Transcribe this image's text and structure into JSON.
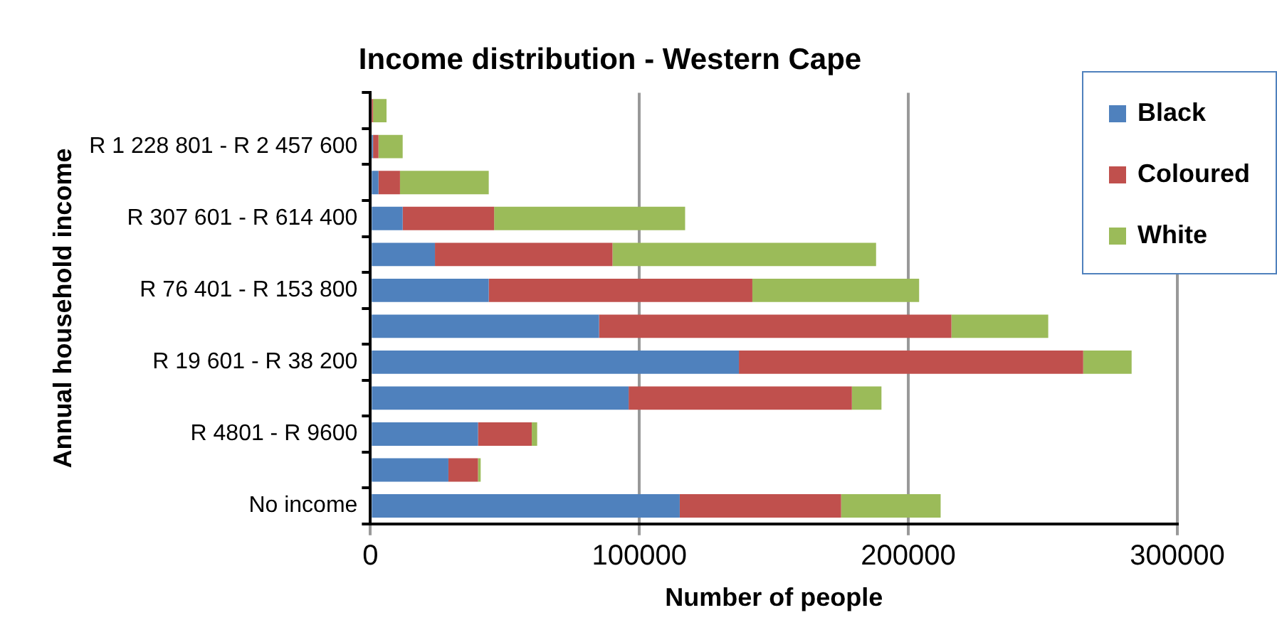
{
  "chart_data": {
    "type": "bar",
    "orientation": "horizontal",
    "stacked": true,
    "title": "Income distribution - Western Cape",
    "xlabel": "Number of people",
    "ylabel": "Annual household income",
    "categories": [
      null,
      "R 1 228 801 - R 2 457 600",
      null,
      "R 307 601 - R 614 400",
      null,
      "R 76 401 - R 153 800",
      null,
      "R 19 601 - R 38 200",
      null,
      "R 4801 - R 9600",
      null,
      "No income"
    ],
    "series": [
      {
        "name": "Black",
        "color": "#4f81bd",
        "values": [
          null,
          1000,
          3000,
          12000,
          24000,
          44000,
          85000,
          137000,
          96000,
          40000,
          29000,
          115000
        ]
      },
      {
        "name": "Coloured",
        "color": "#c0504d",
        "values": [
          1000,
          2000,
          8000,
          34000,
          66000,
          98000,
          131000,
          128000,
          83000,
          20000,
          11000,
          60000
        ]
      },
      {
        "name": "White",
        "color": "#9bbb59",
        "values": [
          5000,
          9000,
          33000,
          71000,
          98000,
          62000,
          36000,
          18000,
          11000,
          2000,
          1000,
          37000
        ]
      }
    ],
    "xlim": [
      0,
      300000
    ],
    "xticks": [
      0,
      100000,
      200000,
      300000
    ],
    "grid": "x",
    "legend": "top right"
  }
}
